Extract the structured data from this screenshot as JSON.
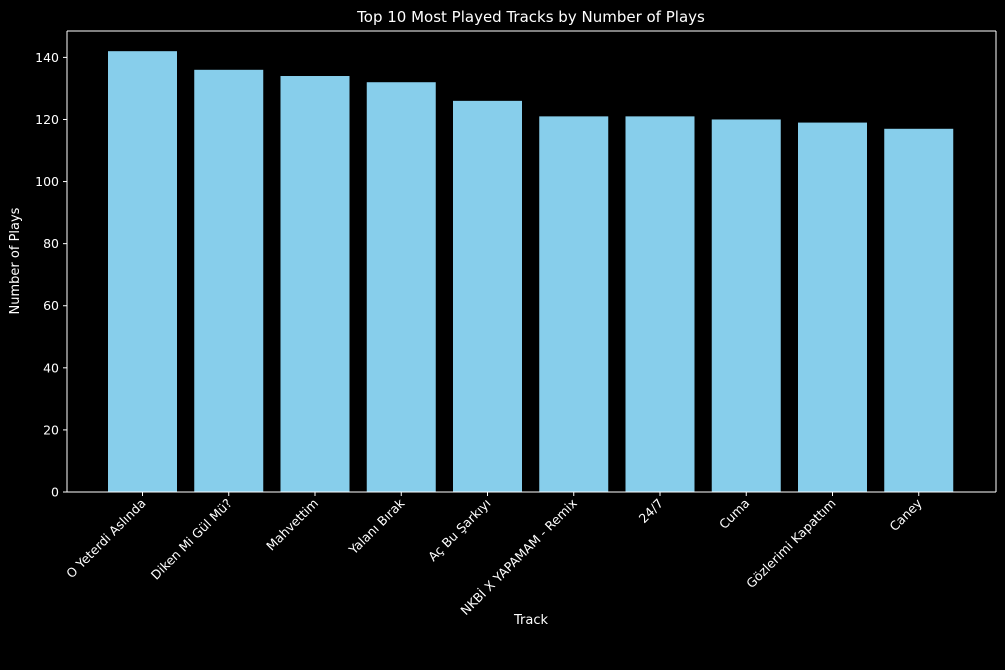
{
  "chart_data": {
    "type": "bar",
    "title": "Top 10 Most Played Tracks by Number of Plays",
    "xlabel": "Track",
    "ylabel": "Number of Plays",
    "categories": [
      "O Yeterdi Aslında",
      "Diken Mi Gül Mü?",
      "Mahvettim",
      "Yalanı Bırak",
      "Aç Bu Şarkıyı",
      "NKBİ X YAPAMAM - Remix",
      "24/7",
      "Cuma",
      "Gözlerimi Kapattım",
      "Caney"
    ],
    "values": [
      142,
      136,
      134,
      132,
      126,
      121,
      121,
      120,
      119,
      117
    ],
    "ylim": [
      0,
      148.5
    ],
    "yticks": [
      0,
      20,
      40,
      60,
      80,
      100,
      120,
      140
    ],
    "grid": false,
    "legend": "none",
    "colors": {
      "background": "#000000",
      "bar": "#87ceeb",
      "text": "#ffffff",
      "axes": "#ffffff"
    }
  }
}
